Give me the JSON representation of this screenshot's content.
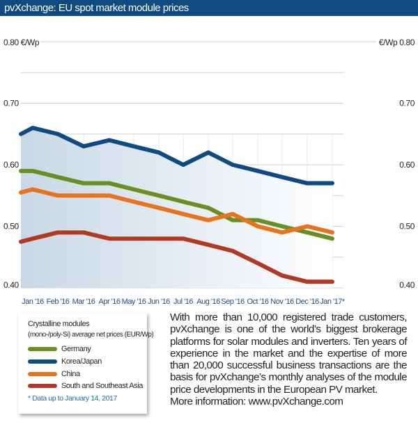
{
  "title": "pvXchange: EU spot market module prices",
  "chart_data": {
    "type": "line",
    "title": "pvXchange: EU spot market module prices",
    "ylabel_left": "0.80 €/Wp",
    "ylabel_right": "€/Wp 0.80",
    "ylim": [
      0.4,
      0.8
    ],
    "yticks": [
      "0.40",
      "0.50",
      "0.60",
      "0.70"
    ],
    "categories": [
      "",
      "Jan '16",
      "Feb '16",
      "Mar '16",
      "Apr '16",
      "May '16",
      "Jun '16",
      "Jul '16",
      "Aug '16",
      "Sep '16",
      "Oct '16",
      "Nov '16",
      "Dec '16",
      "Jan '17*"
    ],
    "grid": true,
    "series": [
      {
        "name": "Germany",
        "color": "#6b8e23",
        "values": [
          0.59,
          0.59,
          0.58,
          0.57,
          0.57,
          0.56,
          0.55,
          0.54,
          0.53,
          0.51,
          0.51,
          0.5,
          0.49,
          0.48
        ]
      },
      {
        "name": "Korea/Japan",
        "color": "#0f4a80",
        "values": [
          0.65,
          0.66,
          0.65,
          0.63,
          0.64,
          0.63,
          0.62,
          0.6,
          0.62,
          0.6,
          0.59,
          0.58,
          0.57,
          0.57
        ]
      },
      {
        "name": "China",
        "color": "#e8731e",
        "values": [
          0.555,
          0.56,
          0.55,
          0.55,
          0.55,
          0.54,
          0.53,
          0.52,
          0.51,
          0.52,
          0.5,
          0.49,
          0.5,
          0.49
        ]
      },
      {
        "name": "South and Southeast Asia",
        "color": "#b03a23",
        "values": [
          0.475,
          0.48,
          0.49,
          0.49,
          0.48,
          0.48,
          0.48,
          0.48,
          0.47,
          0.46,
          0.44,
          0.42,
          0.41,
          0.41
        ]
      }
    ]
  },
  "legend": {
    "title": "Crystalline modules",
    "subtitle": "(mono-/poly-Si) average net prices (EUR/Wp)",
    "note": "* Data up to January 14, 2017"
  },
  "description": [
    "With more than 10,000 registered trade customers, pvXchange is one of the world’s biggest brokerage platforms for solar modules and inverters. Ten years of experience in the market and the expertise of more than 20,000 successful business transactions are the basis for pvXchange’s monthly analyses of the module price developments in the European PV market.",
    "More information: www.pvXchange.com"
  ]
}
